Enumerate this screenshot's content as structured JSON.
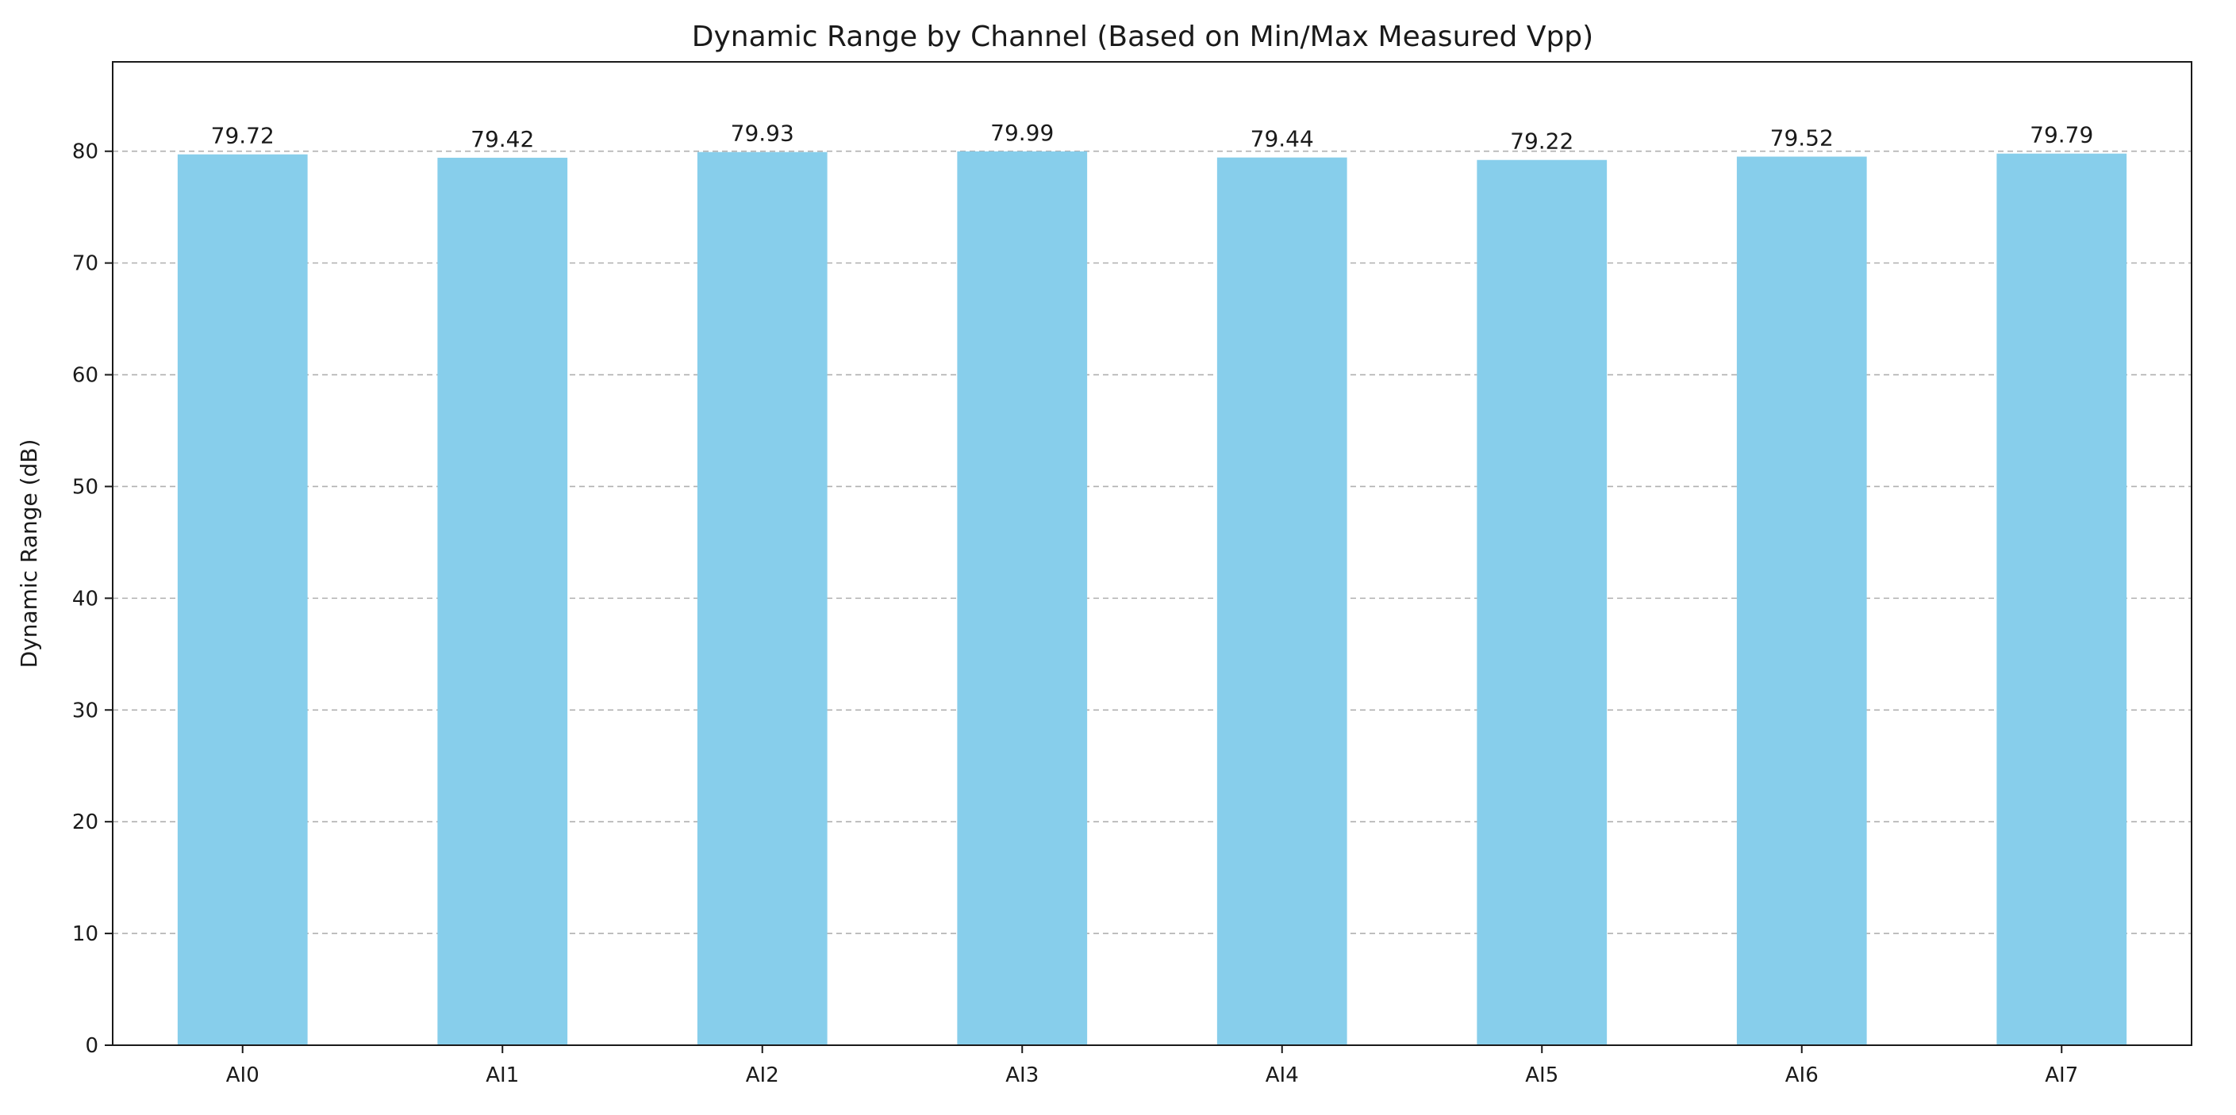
{
  "chart_data": {
    "type": "bar",
    "title": "Dynamic Range by Channel (Based on Min/Max Measured Vpp)",
    "xlabel": "",
    "ylabel": "Dynamic Range (dB)",
    "categories": [
      "AI0",
      "AI1",
      "AI2",
      "AI3",
      "AI4",
      "AI5",
      "AI6",
      "AI7"
    ],
    "values": [
      79.72,
      79.42,
      79.93,
      79.99,
      79.44,
      79.22,
      79.52,
      79.79
    ],
    "value_labels": [
      "79.72",
      "79.42",
      "79.93",
      "79.99",
      "79.44",
      "79.22",
      "79.52",
      "79.79"
    ],
    "ylim": [
      0,
      88
    ],
    "yticks": [
      0,
      10,
      20,
      30,
      40,
      50,
      60,
      70,
      80
    ],
    "grid": "y-dashed",
    "legend": "none",
    "bar_color": "#87ceeb",
    "grid_color": "#b0b0b0"
  }
}
